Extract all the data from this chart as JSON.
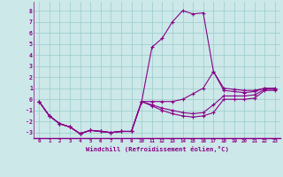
{
  "xlabel": "Windchill (Refroidissement éolien,°C)",
  "xlim": [
    -0.5,
    23.5
  ],
  "ylim": [
    -3.5,
    8.8
  ],
  "yticks": [
    -3,
    -2,
    -1,
    0,
    1,
    2,
    3,
    4,
    5,
    6,
    7,
    8
  ],
  "xticks": [
    0,
    1,
    2,
    3,
    4,
    5,
    6,
    7,
    8,
    9,
    10,
    11,
    12,
    13,
    14,
    15,
    16,
    17,
    18,
    19,
    20,
    21,
    22,
    23
  ],
  "background_color": "#cce8e8",
  "line_color": "#880088",
  "grid_color": "#99cccc",
  "axis_color": "#880088",
  "curves": [
    [
      -0.2,
      -1.5,
      -2.2,
      -2.5,
      -3.1,
      -2.8,
      -2.9,
      -3.0,
      -2.9,
      -2.9,
      -0.2,
      4.7,
      5.5,
      7.0,
      8.0,
      7.7,
      7.8,
      2.5,
      1.0,
      0.9,
      0.8,
      0.8,
      1.0,
      1.0
    ],
    [
      -0.2,
      -1.5,
      -2.2,
      -2.5,
      -3.1,
      -2.8,
      -2.9,
      -3.0,
      -2.9,
      -2.9,
      -0.2,
      -0.2,
      -0.2,
      -0.2,
      0.0,
      0.5,
      1.0,
      2.5,
      0.8,
      0.7,
      0.6,
      0.7,
      1.0,
      1.0
    ],
    [
      -0.2,
      -1.5,
      -2.2,
      -2.5,
      -3.1,
      -2.8,
      -2.9,
      -3.0,
      -2.9,
      -2.9,
      -0.2,
      -0.5,
      -0.8,
      -1.0,
      -1.2,
      -1.3,
      -1.2,
      -0.5,
      0.3,
      0.3,
      0.3,
      0.4,
      0.9,
      0.9
    ],
    [
      -0.2,
      -1.5,
      -2.2,
      -2.5,
      -3.1,
      -2.8,
      -2.9,
      -3.0,
      -2.9,
      -2.9,
      -0.2,
      -0.6,
      -1.0,
      -1.3,
      -1.5,
      -1.6,
      -1.5,
      -1.2,
      0.0,
      0.0,
      0.0,
      0.1,
      0.8,
      0.8
    ]
  ]
}
